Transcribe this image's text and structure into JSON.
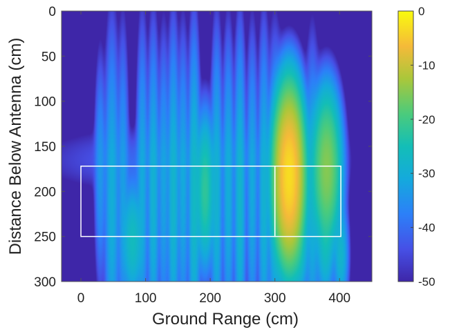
{
  "chart_data": {
    "type": "heatmap",
    "xlabel": "Ground Range (cm)",
    "ylabel": "Distance Below Antenna (cm)",
    "xlim": [
      -30,
      450
    ],
    "ylim": [
      0,
      300
    ],
    "y_reversed": true,
    "x_ticks": [
      0,
      100,
      200,
      300,
      400
    ],
    "y_ticks": [
      0,
      50,
      100,
      150,
      200,
      250,
      300
    ],
    "colorbar": {
      "colormap": "parula",
      "range": [
        -50,
        0
      ],
      "ticks": [
        0,
        -10,
        -20,
        -30,
        -40,
        -50
      ]
    },
    "background_value_db": -50,
    "blobs": [
      {
        "x": 30,
        "y": 180,
        "sx": 4,
        "sy": 55,
        "v": -34
      },
      {
        "x": 48,
        "y": 215,
        "sx": 5,
        "sy": 80,
        "v": -30
      },
      {
        "x": 65,
        "y": 200,
        "sx": 4,
        "sy": 75,
        "v": -33
      },
      {
        "x": 80,
        "y": 255,
        "sx": 7,
        "sy": 28,
        "v": -26
      },
      {
        "x": 95,
        "y": 200,
        "sx": 4,
        "sy": 75,
        "v": -31
      },
      {
        "x": 112,
        "y": 210,
        "sx": 4,
        "sy": 75,
        "v": -29
      },
      {
        "x": 128,
        "y": 200,
        "sx": 4,
        "sy": 70,
        "v": -32
      },
      {
        "x": 143,
        "y": 210,
        "sx": 4,
        "sy": 75,
        "v": -28
      },
      {
        "x": 158,
        "y": 200,
        "sx": 4,
        "sy": 70,
        "v": -31
      },
      {
        "x": 175,
        "y": 210,
        "sx": 4,
        "sy": 75,
        "v": -27
      },
      {
        "x": 192,
        "y": 200,
        "sx": 6,
        "sy": 35,
        "v": -22
      },
      {
        "x": 210,
        "y": 210,
        "sx": 4,
        "sy": 75,
        "v": -29
      },
      {
        "x": 228,
        "y": 200,
        "sx": 4,
        "sy": 70,
        "v": -30
      },
      {
        "x": 246,
        "y": 210,
        "sx": 4,
        "sy": 75,
        "v": -28
      },
      {
        "x": 265,
        "y": 200,
        "sx": 4,
        "sy": 70,
        "v": -31
      },
      {
        "x": 283,
        "y": 210,
        "sx": 4,
        "sy": 75,
        "v": -29
      },
      {
        "x": 300,
        "y": 220,
        "sx": 5,
        "sy": 75,
        "v": -30
      },
      {
        "x": 322,
        "y": 183,
        "sx": 9,
        "sy": 36,
        "v": -3
      },
      {
        "x": 338,
        "y": 270,
        "sx": 6,
        "sy": 22,
        "v": -28
      },
      {
        "x": 358,
        "y": 215,
        "sx": 5,
        "sy": 70,
        "v": -30
      },
      {
        "x": 380,
        "y": 175,
        "sx": 9,
        "sy": 34,
        "v": -15
      },
      {
        "x": 378,
        "y": 262,
        "sx": 6,
        "sy": 25,
        "v": -27
      },
      {
        "x": 402,
        "y": 270,
        "sx": 5,
        "sy": 24,
        "v": -28
      },
      {
        "x": 170,
        "y": 165,
        "sx": 110,
        "sy": 18,
        "v": -40
      }
    ],
    "annotations": [
      {
        "type": "rect",
        "x0": 0,
        "x1": 300,
        "y0": 172,
        "y1": 250,
        "color": "#ffffff"
      },
      {
        "type": "rect",
        "x0": 300,
        "x1": 402,
        "y0": 172,
        "y1": 250,
        "color": "#ffffff"
      }
    ]
  }
}
